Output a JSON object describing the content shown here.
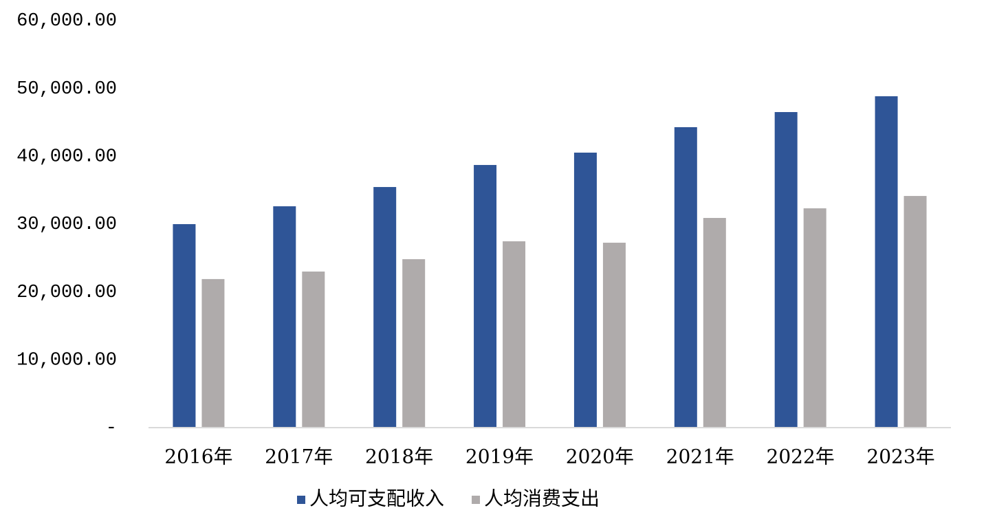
{
  "chart_data": {
    "type": "bar",
    "categories": [
      "2016年",
      "2017年",
      "2018年",
      "2019年",
      "2020年",
      "2021年",
      "2022年",
      "2023年"
    ],
    "series": [
      {
        "name": "人均可支配收入",
        "color": "#2f5597",
        "values": [
          30000,
          32630,
          35470,
          38720,
          40540,
          44290,
          46520,
          48850
        ]
      },
      {
        "name": "人均消费支出",
        "color": "#afabab",
        "values": [
          21900,
          23010,
          24830,
          27470,
          27260,
          30910,
          32330,
          34150
        ]
      }
    ],
    "ylim": [
      0,
      60000
    ],
    "yticks": [
      {
        "value": 0,
        "label": "-"
      },
      {
        "value": 10000,
        "label": "10,000.00"
      },
      {
        "value": 20000,
        "label": "20,000.00"
      },
      {
        "value": 30000,
        "label": "30,000.00"
      },
      {
        "value": 40000,
        "label": "40,000.00"
      },
      {
        "value": 50000,
        "label": "50,000.00"
      },
      {
        "value": 60000,
        "label": "60,000.00"
      }
    ],
    "grid": false,
    "legend": "bottom"
  }
}
